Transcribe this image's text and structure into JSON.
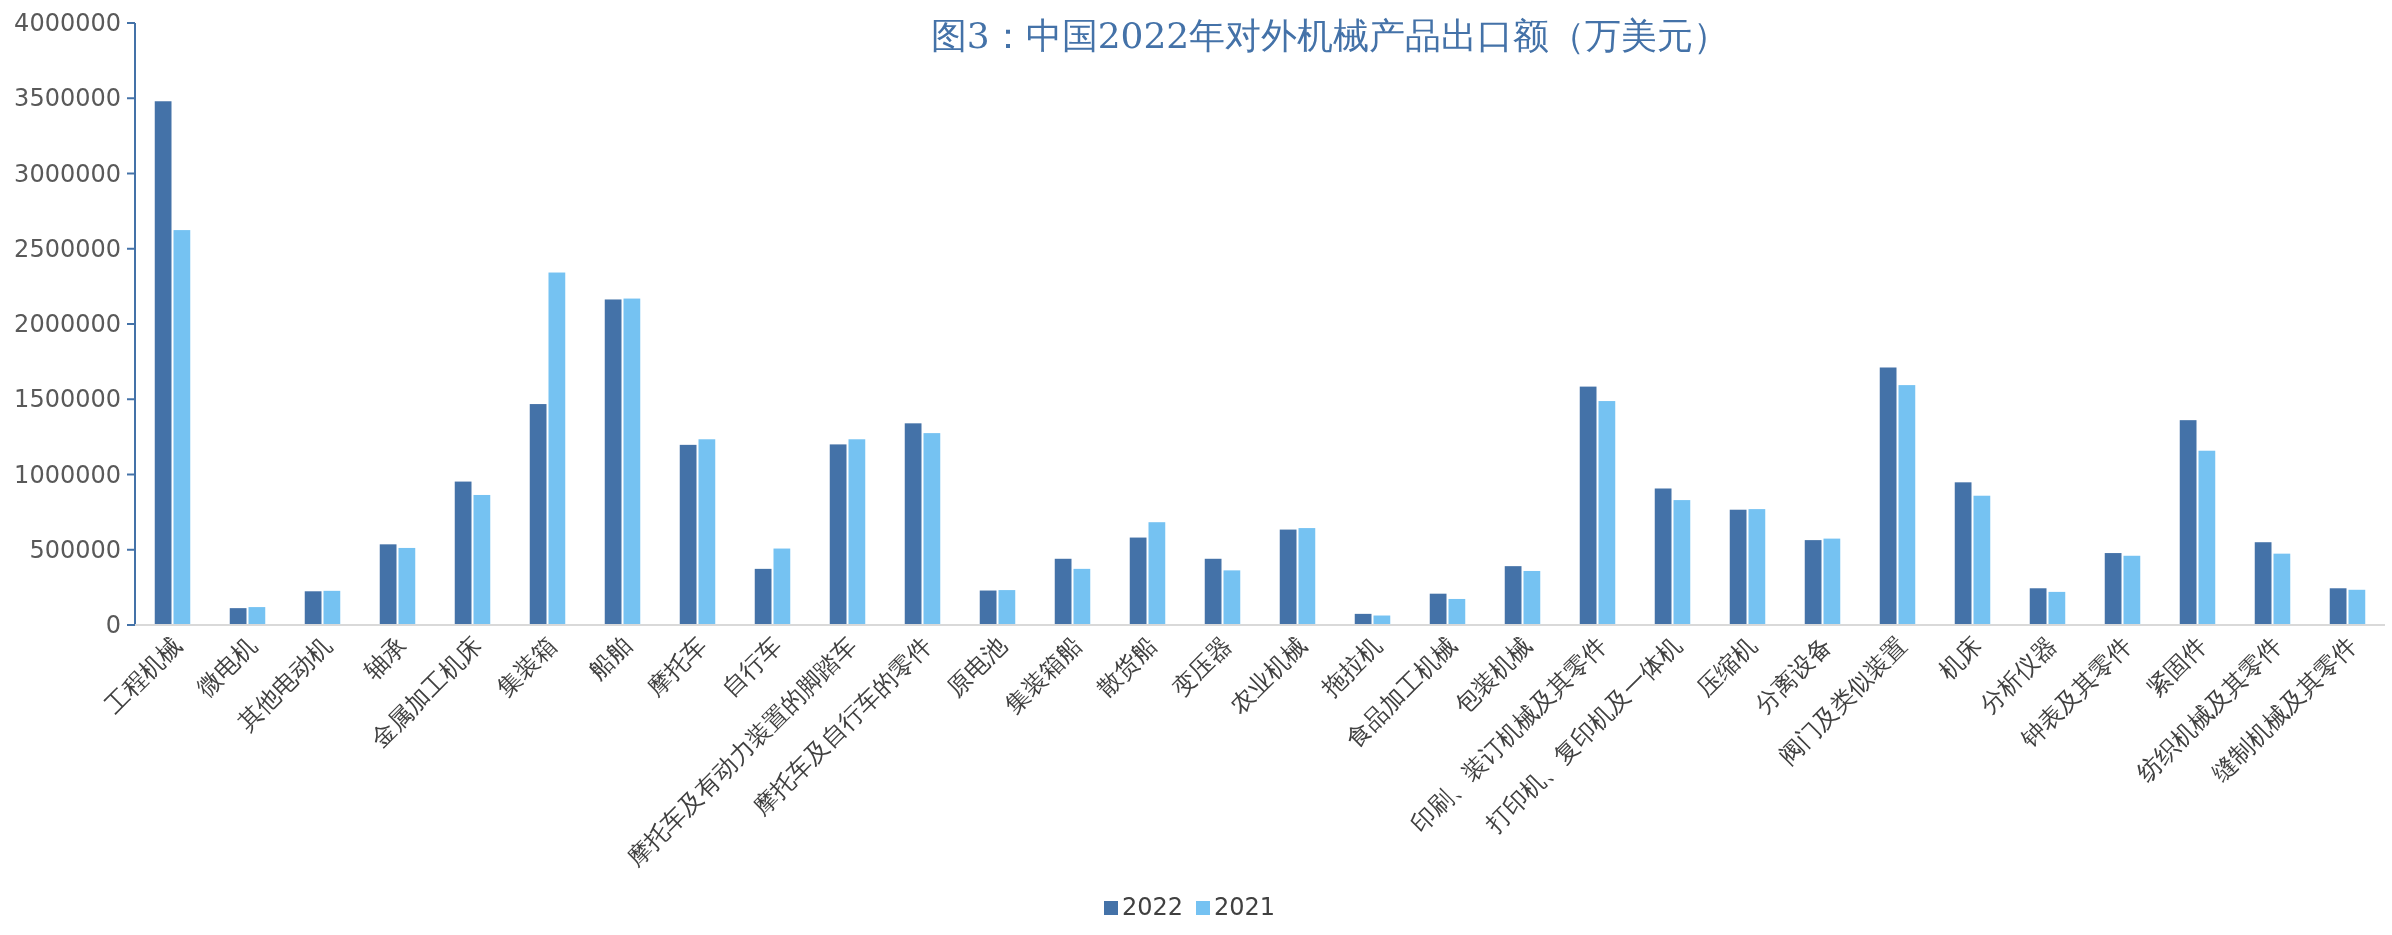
{
  "chart_data": {
    "type": "bar",
    "title": "图3：中国2022年对外机械产品出口额（万美元）",
    "categories": [
      "工程机械",
      "微电机",
      "其他电动机",
      "轴承",
      "金属加工机床",
      "集装箱",
      "船舶",
      "摩托车",
      "自行车",
      "摩托车及有动力装置的脚踏车",
      "摩托车及自行车的零件",
      "原电池",
      "集装箱船",
      "散货船",
      "变压器",
      "农业机械",
      "拖拉机",
      "食品加工机械",
      "包装机械",
      "印刷、装订机械及其零件",
      "打印机、复印机及一体机",
      "压缩机",
      "分离设备",
      "阀门及类似装置",
      "机床",
      "分析仪器",
      "钟表及其零件",
      "紧固件",
      "纺织机械及其零件",
      "缝制机械及其零件"
    ],
    "series": [
      {
        "name": "2022",
        "color": "#4472a8",
        "values": [
          3480000,
          112000,
          224000,
          536000,
          953000,
          1468000,
          2163000,
          1197000,
          373000,
          1200000,
          1340000,
          229000,
          440000,
          581000,
          440000,
          634000,
          74000,
          208000,
          391000,
          1584000,
          907000,
          766000,
          564000,
          1711000,
          948000,
          244000,
          478000,
          1361000,
          550000,
          244000
        ]
      },
      {
        "name": "2021",
        "color": "#75c2f2",
        "values": [
          2624000,
          119000,
          227000,
          512000,
          864000,
          2342000,
          2169000,
          1234000,
          508000,
          1234000,
          1275000,
          232000,
          373000,
          683000,
          363000,
          644000,
          63000,
          173000,
          359000,
          1488000,
          830000,
          770000,
          574000,
          1594000,
          859000,
          220000,
          460000,
          1158000,
          474000,
          234000
        ]
      }
    ],
    "ylim": [
      0,
      4000000
    ],
    "yticks": [
      0,
      500000,
      1000000,
      1500000,
      2000000,
      2500000,
      3000000,
      3500000,
      4000000
    ],
    "legend": "bottom"
  }
}
